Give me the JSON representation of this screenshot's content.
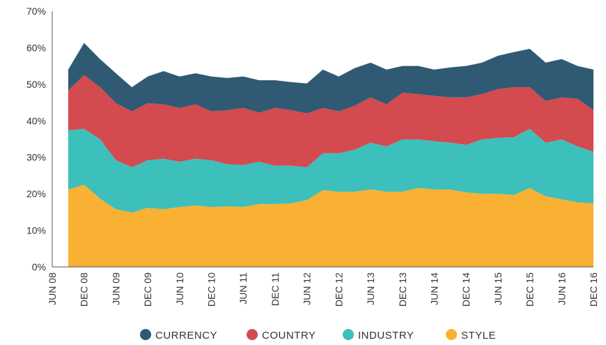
{
  "chart_data": {
    "type": "area",
    "stacked": true,
    "title": "",
    "xlabel": "",
    "ylabel": "",
    "ylim": [
      0,
      70
    ],
    "y_ticks": [
      "0%",
      "10%",
      "20%",
      "30%",
      "40%",
      "50%",
      "60%",
      "70%"
    ],
    "x_ticks": [
      "JUN 08",
      "DEC 08",
      "JUN 09",
      "DEC 09",
      "JUN 10",
      "DEC 10",
      "JUN 11",
      "DEC 11",
      "JUN 12",
      "DEC 12",
      "JUN 13",
      "DEC 13",
      "JUN 14",
      "DEC 14",
      "JUN 15",
      "DEC 15",
      "JUN 16",
      "DEC 16"
    ],
    "x_range": [
      "2008-06",
      "2016-12"
    ],
    "grid": false,
    "legend_position": "bottom",
    "x": [
      "2008-09",
      "2008-12",
      "2009-03",
      "2009-06",
      "2009-09",
      "2009-12",
      "2010-03",
      "2010-06",
      "2010-09",
      "2010-12",
      "2011-03",
      "2011-06",
      "2011-09",
      "2011-12",
      "2012-03",
      "2012-06",
      "2012-09",
      "2012-12",
      "2013-03",
      "2013-06",
      "2013-09",
      "2013-12",
      "2014-03",
      "2014-06",
      "2014-09",
      "2014-12",
      "2015-03",
      "2015-06",
      "2015-09",
      "2015-12",
      "2016-03",
      "2016-06",
      "2016-09",
      "2016-12"
    ],
    "series": [
      {
        "name": "STYLE",
        "color": "#f8b133",
        "values": [
          21.2,
          22.5,
          18.7,
          15.8,
          14.9,
          16.2,
          15.8,
          16.4,
          16.8,
          16.4,
          16.6,
          16.4,
          17.2,
          17.2,
          17.4,
          18.3,
          21.0,
          20.6,
          20.6,
          21.2,
          20.6,
          20.6,
          21.6,
          21.2,
          21.2,
          20.4,
          20.0,
          20.0,
          19.7,
          21.6,
          19.3,
          18.5,
          17.7,
          17.4
        ]
      },
      {
        "name": "INDUSTRY",
        "color": "#3dbfbb",
        "values": [
          16.2,
          15.3,
          16.3,
          13.4,
          12.4,
          13.0,
          13.8,
          12.4,
          12.8,
          12.8,
          11.5,
          11.5,
          11.6,
          10.5,
          10.3,
          9.0,
          10.1,
          10.5,
          11.5,
          12.8,
          12.4,
          14.3,
          13.3,
          13.2,
          12.8,
          13.0,
          14.9,
          15.3,
          15.8,
          16.2,
          14.7,
          16.4,
          15.3,
          14.1
        ]
      },
      {
        "name": "COUNTRY",
        "color": "#d34a4f",
        "values": [
          10.9,
          14.7,
          14.2,
          15.6,
          15.3,
          15.6,
          14.9,
          14.7,
          14.9,
          13.4,
          14.8,
          15.6,
          13.4,
          15.8,
          15.2,
          14.7,
          12.4,
          11.5,
          12.0,
          12.4,
          11.5,
          12.8,
          12.4,
          12.4,
          12.4,
          13.0,
          12.4,
          13.4,
          13.7,
          11.4,
          11.4,
          11.5,
          13.0,
          11.4
        ]
      },
      {
        "name": "CURRENCY",
        "color": "#305a73",
        "values": [
          5.7,
          8.8,
          7.7,
          8.2,
          6.6,
          7.3,
          9.1,
          8.6,
          8.5,
          9.5,
          8.8,
          8.6,
          8.9,
          7.6,
          7.7,
          8.2,
          10.5,
          9.5,
          10.3,
          9.5,
          9.5,
          7.3,
          7.7,
          7.2,
          8.2,
          8.6,
          8.6,
          9.1,
          9.6,
          10.5,
          10.5,
          10.5,
          9.0,
          11.1
        ]
      }
    ],
    "legend": [
      "CURRENCY",
      "COUNTRY",
      "INDUSTRY",
      "STYLE"
    ]
  }
}
